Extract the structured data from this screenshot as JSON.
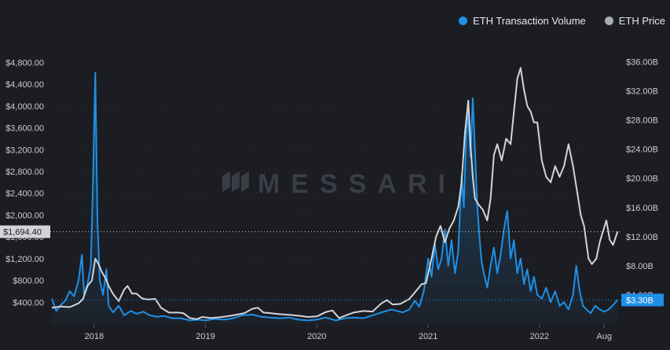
{
  "legend": {
    "volume_label": "ETH Transaction Volume",
    "price_label": "ETH Price"
  },
  "watermark": "MESSARI",
  "chart_data": {
    "type": "line",
    "x_labels": [
      "2018",
      "2019",
      "2020",
      "2021",
      "2022",
      "Aug"
    ],
    "x_label_dates": [
      2018.0,
      2019.0,
      2020.0,
      2021.0,
      2022.0,
      2022.58
    ],
    "x_range": [
      2017.62,
      2022.72
    ],
    "left_axis": {
      "name": "ETH Price",
      "range": [
        0,
        5080
      ],
      "ticks": [
        400,
        800,
        1200,
        1600,
        2000,
        2400,
        2800,
        3200,
        3600,
        4000,
        4400,
        4800
      ],
      "tick_labels": [
        "$400.00",
        "$800.00",
        "$1,200.00",
        "$1,600.00",
        "$2,000.00",
        "$2,400.00",
        "$2,800.00",
        "$3,200.00",
        "$3,600.00",
        "$4,000.00",
        "$4,400.00",
        "$4,800.00"
      ],
      "current_value_label": "$1,694.40",
      "current_value": 1694.4
    },
    "right_axis": {
      "name": "ETH Transaction Volume",
      "unit": "B",
      "range": [
        0,
        38.0
      ],
      "ticks": [
        4,
        8,
        12,
        16,
        20,
        24,
        28,
        32,
        36
      ],
      "tick_labels": [
        "$4.00B",
        "$8.00B",
        "$12.00B",
        "$16.00B",
        "$20.00B",
        "$24.00B",
        "$28.00B",
        "$32.00B",
        "$36.00B"
      ],
      "current_value_label": "$3.30B",
      "current_value": 3.3
    },
    "series": [
      {
        "name": "ETH Transaction Volume",
        "axis": "right",
        "color": "#1e90e6",
        "points": [
          [
            2017.62,
            3.5
          ],
          [
            2017.66,
            1.8
          ],
          [
            2017.7,
            2.6
          ],
          [
            2017.74,
            3.2
          ],
          [
            2017.78,
            4.5
          ],
          [
            2017.82,
            3.8
          ],
          [
            2017.86,
            6.0
          ],
          [
            2017.89,
            9.5
          ],
          [
            2017.91,
            4.0
          ],
          [
            2017.94,
            5.5
          ],
          [
            2017.97,
            8.0
          ],
          [
            2017.99,
            20.0
          ],
          [
            2018.01,
            34.5
          ],
          [
            2018.03,
            14.0
          ],
          [
            2018.05,
            6.0
          ],
          [
            2018.08,
            4.0
          ],
          [
            2018.11,
            7.5
          ],
          [
            2018.13,
            2.5
          ],
          [
            2018.17,
            1.6
          ],
          [
            2018.22,
            2.5
          ],
          [
            2018.27,
            1.2
          ],
          [
            2018.33,
            1.8
          ],
          [
            2018.38,
            1.4
          ],
          [
            2018.44,
            1.7
          ],
          [
            2018.5,
            1.2
          ],
          [
            2018.56,
            1.0
          ],
          [
            2018.63,
            1.1
          ],
          [
            2018.7,
            0.8
          ],
          [
            2018.78,
            0.8
          ],
          [
            2018.86,
            0.5
          ],
          [
            2018.93,
            0.6
          ],
          [
            2019.0,
            0.5
          ],
          [
            2019.08,
            0.7
          ],
          [
            2019.17,
            0.6
          ],
          [
            2019.25,
            0.8
          ],
          [
            2019.33,
            1.2
          ],
          [
            2019.42,
            1.3
          ],
          [
            2019.5,
            1.0
          ],
          [
            2019.58,
            0.9
          ],
          [
            2019.67,
            0.8
          ],
          [
            2019.75,
            0.9
          ],
          [
            2019.83,
            0.6
          ],
          [
            2019.92,
            0.5
          ],
          [
            2020.0,
            0.6
          ],
          [
            2020.08,
            0.9
          ],
          [
            2020.17,
            0.5
          ],
          [
            2020.25,
            0.8
          ],
          [
            2020.33,
            0.9
          ],
          [
            2020.42,
            0.8
          ],
          [
            2020.5,
            1.2
          ],
          [
            2020.58,
            1.6
          ],
          [
            2020.67,
            2.0
          ],
          [
            2020.72,
            1.8
          ],
          [
            2020.77,
            1.6
          ],
          [
            2020.83,
            2.0
          ],
          [
            2020.88,
            3.2
          ],
          [
            2020.92,
            2.4
          ],
          [
            2020.96,
            4.5
          ],
          [
            2021.0,
            9.0
          ],
          [
            2021.03,
            6.5
          ],
          [
            2021.06,
            11.0
          ],
          [
            2021.09,
            7.5
          ],
          [
            2021.12,
            9.0
          ],
          [
            2021.15,
            13.0
          ],
          [
            2021.18,
            8.0
          ],
          [
            2021.21,
            11.5
          ],
          [
            2021.24,
            7.0
          ],
          [
            2021.27,
            10.0
          ],
          [
            2021.3,
            20.5
          ],
          [
            2021.32,
            16.0
          ],
          [
            2021.34,
            25.5
          ],
          [
            2021.36,
            29.0
          ],
          [
            2021.38,
            23.0
          ],
          [
            2021.4,
            31.0
          ],
          [
            2021.42,
            24.0
          ],
          [
            2021.44,
            16.5
          ],
          [
            2021.46,
            12.0
          ],
          [
            2021.48,
            8.5
          ],
          [
            2021.5,
            7.0
          ],
          [
            2021.53,
            5.0
          ],
          [
            2021.56,
            8.0
          ],
          [
            2021.59,
            10.5
          ],
          [
            2021.62,
            7.0
          ],
          [
            2021.65,
            9.5
          ],
          [
            2021.68,
            13.0
          ],
          [
            2021.71,
            15.5
          ],
          [
            2021.74,
            9.0
          ],
          [
            2021.77,
            11.5
          ],
          [
            2021.8,
            7.0
          ],
          [
            2021.83,
            9.0
          ],
          [
            2021.86,
            5.5
          ],
          [
            2021.89,
            7.5
          ],
          [
            2021.92,
            4.5
          ],
          [
            2021.95,
            6.5
          ],
          [
            2021.98,
            4.0
          ],
          [
            2022.02,
            3.5
          ],
          [
            2022.06,
            5.0
          ],
          [
            2022.1,
            3.0
          ],
          [
            2022.14,
            4.5
          ],
          [
            2022.18,
            2.5
          ],
          [
            2022.22,
            3.0
          ],
          [
            2022.26,
            2.0
          ],
          [
            2022.3,
            4.0
          ],
          [
            2022.33,
            8.0
          ],
          [
            2022.36,
            4.5
          ],
          [
            2022.39,
            2.5
          ],
          [
            2022.42,
            2.0
          ],
          [
            2022.46,
            1.5
          ],
          [
            2022.5,
            2.5
          ],
          [
            2022.54,
            2.0
          ],
          [
            2022.58,
            1.7
          ],
          [
            2022.62,
            2.0
          ],
          [
            2022.66,
            2.6
          ],
          [
            2022.7,
            3.3
          ]
        ]
      },
      {
        "name": "ETH Price",
        "axis": "left",
        "color": "#d2d4da",
        "points": [
          [
            2017.62,
            300
          ],
          [
            2017.7,
            320
          ],
          [
            2017.78,
            310
          ],
          [
            2017.86,
            380
          ],
          [
            2017.9,
            460
          ],
          [
            2017.94,
            700
          ],
          [
            2017.98,
            800
          ],
          [
            2018.01,
            1200
          ],
          [
            2018.04,
            1100
          ],
          [
            2018.07,
            950
          ],
          [
            2018.1,
            850
          ],
          [
            2018.13,
            700
          ],
          [
            2018.17,
            550
          ],
          [
            2018.22,
            420
          ],
          [
            2018.27,
            630
          ],
          [
            2018.3,
            700
          ],
          [
            2018.34,
            560
          ],
          [
            2018.38,
            560
          ],
          [
            2018.43,
            470
          ],
          [
            2018.48,
            450
          ],
          [
            2018.55,
            460
          ],
          [
            2018.6,
            300
          ],
          [
            2018.67,
            210
          ],
          [
            2018.75,
            210
          ],
          [
            2018.8,
            200
          ],
          [
            2018.86,
            110
          ],
          [
            2018.92,
            90
          ],
          [
            2018.97,
            130
          ],
          [
            2019.05,
            110
          ],
          [
            2019.15,
            130
          ],
          [
            2019.25,
            160
          ],
          [
            2019.35,
            200
          ],
          [
            2019.42,
            280
          ],
          [
            2019.47,
            300
          ],
          [
            2019.52,
            210
          ],
          [
            2019.58,
            200
          ],
          [
            2019.67,
            180
          ],
          [
            2019.75,
            170
          ],
          [
            2019.85,
            150
          ],
          [
            2019.92,
            130
          ],
          [
            2020.0,
            140
          ],
          [
            2020.08,
            220
          ],
          [
            2020.14,
            250
          ],
          [
            2020.2,
            110
          ],
          [
            2020.25,
            150
          ],
          [
            2020.33,
            210
          ],
          [
            2020.42,
            240
          ],
          [
            2020.5,
            230
          ],
          [
            2020.58,
            380
          ],
          [
            2020.63,
            440
          ],
          [
            2020.68,
            360
          ],
          [
            2020.75,
            370
          ],
          [
            2020.83,
            460
          ],
          [
            2020.88,
            580
          ],
          [
            2020.94,
            730
          ],
          [
            2020.98,
            750
          ],
          [
            2021.03,
            1200
          ],
          [
            2021.07,
            1600
          ],
          [
            2021.11,
            1800
          ],
          [
            2021.15,
            1500
          ],
          [
            2021.19,
            1750
          ],
          [
            2021.23,
            1900
          ],
          [
            2021.27,
            2150
          ],
          [
            2021.3,
            2600
          ],
          [
            2021.33,
            3500
          ],
          [
            2021.36,
            4100
          ],
          [
            2021.38,
            3300
          ],
          [
            2021.4,
            2700
          ],
          [
            2021.42,
            2300
          ],
          [
            2021.45,
            2200
          ],
          [
            2021.49,
            2100
          ],
          [
            2021.53,
            1900
          ],
          [
            2021.56,
            2300
          ],
          [
            2021.59,
            3100
          ],
          [
            2021.62,
            3300
          ],
          [
            2021.66,
            3000
          ],
          [
            2021.7,
            3400
          ],
          [
            2021.74,
            3300
          ],
          [
            2021.77,
            3900
          ],
          [
            2021.8,
            4500
          ],
          [
            2021.83,
            4700
          ],
          [
            2021.86,
            4300
          ],
          [
            2021.89,
            4000
          ],
          [
            2021.92,
            3900
          ],
          [
            2021.95,
            3700
          ],
          [
            2021.98,
            3700
          ],
          [
            2022.02,
            3000
          ],
          [
            2022.06,
            2700
          ],
          [
            2022.1,
            2600
          ],
          [
            2022.14,
            2900
          ],
          [
            2022.18,
            2700
          ],
          [
            2022.22,
            2900
          ],
          [
            2022.26,
            3300
          ],
          [
            2022.3,
            2900
          ],
          [
            2022.34,
            2400
          ],
          [
            2022.37,
            2000
          ],
          [
            2022.4,
            1800
          ],
          [
            2022.44,
            1200
          ],
          [
            2022.47,
            1100
          ],
          [
            2022.51,
            1200
          ],
          [
            2022.54,
            1500
          ],
          [
            2022.57,
            1700
          ],
          [
            2022.6,
            1900
          ],
          [
            2022.63,
            1550
          ],
          [
            2022.66,
            1450
          ],
          [
            2022.7,
            1694.4
          ]
        ]
      }
    ],
    "grid": true,
    "legend_position": "top-right"
  }
}
